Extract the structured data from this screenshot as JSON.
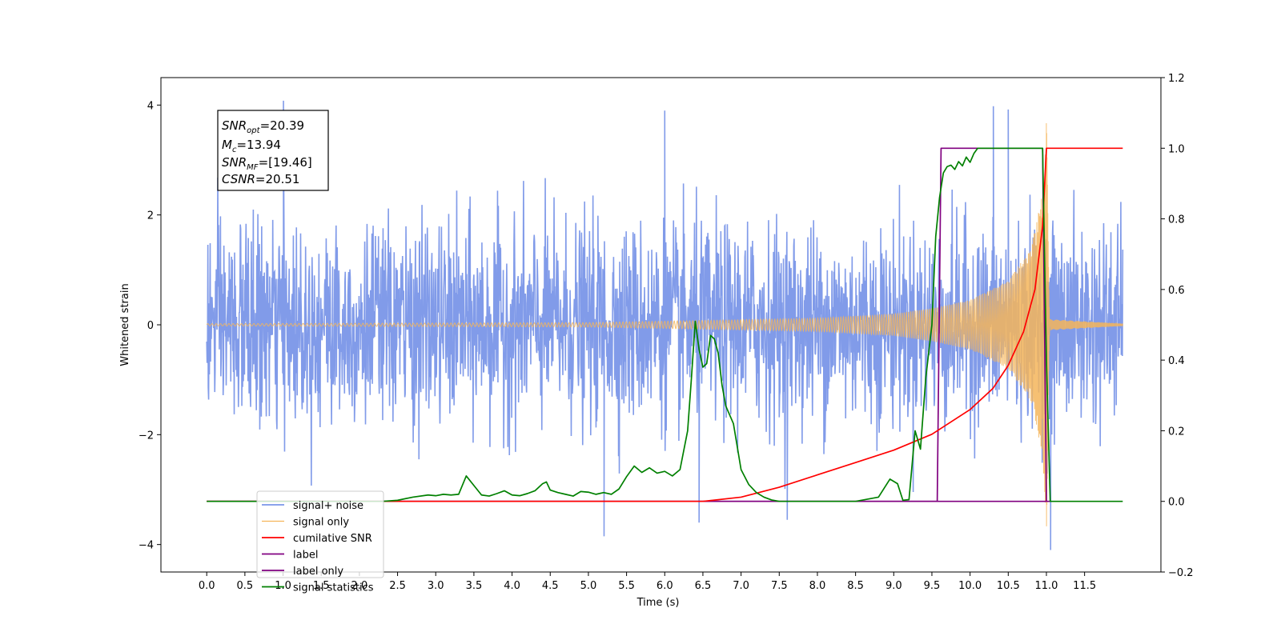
{
  "chart_data": {
    "type": "line",
    "xlabel": "Time (s)",
    "ylabel": "Whitened strain",
    "xlim": [
      -0.6,
      12.5
    ],
    "ylim": [
      -4.5,
      4.5
    ],
    "y2lim": [
      -0.2,
      1.2
    ],
    "xticks": [
      0.0,
      0.5,
      1.0,
      1.5,
      2.0,
      2.5,
      3.0,
      3.5,
      4.0,
      4.5,
      5.0,
      5.5,
      6.0,
      6.5,
      7.0,
      7.5,
      8.0,
      8.5,
      9.0,
      9.5,
      10.0,
      10.5,
      11.0,
      11.5
    ],
    "xtick_labels": [
      "0.0",
      "0.5",
      "1.0",
      "1.5",
      "2.0",
      "2.5",
      "3.0",
      "3.5",
      "4.0",
      "4.5",
      "5.0",
      "5.5",
      "6.0",
      "6.5",
      "7.0",
      "7.5",
      "8.0",
      "8.5",
      "9.0",
      "9.5",
      "10.0",
      "10.5",
      "11.0",
      "11.5"
    ],
    "yticks": [
      -4,
      -2,
      0,
      2,
      4
    ],
    "ytick_labels": [
      "−4",
      "−2",
      "0",
      "2",
      "4"
    ],
    "y2ticks": [
      -0.2,
      0.0,
      0.2,
      0.4,
      0.6,
      0.8,
      1.0,
      1.2
    ],
    "y2tick_labels": [
      "−0.2",
      "0.0",
      "0.2",
      "0.4",
      "0.6",
      "0.8",
      "1.0",
      "1.2"
    ],
    "grid": false,
    "legend_position": "lower-left",
    "annotation": {
      "lines": [
        {
          "main": "SNR",
          "sub": "opt",
          "rest": "=20.39"
        },
        {
          "main": "M",
          "sub": "c",
          "rest": "=13.94"
        },
        {
          "main": "SNR",
          "sub": "MF",
          "rest": "=[19.46]"
        },
        {
          "main": "CSNR",
          "sub": "",
          "rest": "=20.51"
        }
      ]
    },
    "series": [
      {
        "name": "signal+ noise",
        "color": "#7a96e8",
        "axis": "left",
        "kind": "noisy_band",
        "x_range": [
          0.0,
          12.0
        ],
        "envelope_typical": 1.8,
        "envelope_extreme": 4.1,
        "spikes": [
          [
            1.0,
            4.08
          ],
          [
            6.0,
            3.9
          ],
          [
            10.3,
            3.98
          ],
          [
            10.5,
            3.92
          ],
          [
            6.45,
            -3.6
          ],
          [
            11.05,
            -4.1
          ],
          [
            5.2,
            -3.85
          ],
          [
            7.6,
            -3.55
          ]
        ]
      },
      {
        "name": "signal only",
        "color": "#f5b55a",
        "axis": "left",
        "kind": "chirp",
        "x_range": [
          0.0,
          12.0
        ],
        "merger_time": 11.0,
        "amplitude_points": [
          [
            0.0,
            0.02
          ],
          [
            5.0,
            0.04
          ],
          [
            8.0,
            0.12
          ],
          [
            9.0,
            0.2
          ],
          [
            9.5,
            0.3
          ],
          [
            10.0,
            0.45
          ],
          [
            10.5,
            0.8
          ],
          [
            10.8,
            1.4
          ],
          [
            10.95,
            2.4
          ],
          [
            11.0,
            3.8
          ],
          [
            11.05,
            0.1
          ],
          [
            12.0,
            0.02
          ]
        ]
      },
      {
        "name": "cumilative SNR",
        "color": "#ff0000",
        "axis": "right",
        "x": [
          0.0,
          6.5,
          7.0,
          7.5,
          8.0,
          8.5,
          9.0,
          9.5,
          10.0,
          10.3,
          10.5,
          10.7,
          10.85,
          10.95,
          11.0,
          11.05,
          12.0
        ],
        "values": [
          0.0,
          0.0,
          0.012,
          0.04,
          0.075,
          0.11,
          0.145,
          0.19,
          0.26,
          0.32,
          0.385,
          0.48,
          0.6,
          0.78,
          1.0,
          1.0,
          1.0
        ]
      },
      {
        "name": "label",
        "color": "#800080",
        "axis": "right",
        "x": [
          0.0,
          9.57,
          9.62,
          10.95,
          11.0,
          11.05
        ],
        "values": [
          0.0,
          0.0,
          1.0,
          1.0,
          0.0,
          0.0
        ]
      },
      {
        "name": "label only",
        "color": "#800080",
        "axis": "right",
        "x": [
          0.0,
          11.0
        ],
        "values": [
          0.0,
          0.0
        ]
      },
      {
        "name": "signal statistics",
        "color": "#008000",
        "axis": "right",
        "x": [
          0.0,
          2.0,
          2.3,
          2.5,
          2.7,
          2.9,
          3.0,
          3.1,
          3.2,
          3.3,
          3.4,
          3.5,
          3.6,
          3.7,
          3.8,
          3.9,
          4.0,
          4.1,
          4.2,
          4.3,
          4.4,
          4.45,
          4.5,
          4.6,
          4.7,
          4.8,
          4.9,
          5.0,
          5.1,
          5.2,
          5.3,
          5.4,
          5.5,
          5.6,
          5.7,
          5.8,
          5.9,
          6.0,
          6.1,
          6.2,
          6.3,
          6.35,
          6.4,
          6.45,
          6.5,
          6.55,
          6.6,
          6.65,
          6.7,
          6.75,
          6.8,
          6.9,
          7.0,
          7.1,
          7.2,
          7.3,
          7.4,
          7.5,
          7.7,
          8.0,
          8.5,
          8.8,
          8.95,
          9.05,
          9.12,
          9.2,
          9.28,
          9.35,
          9.42,
          9.5,
          9.55,
          9.6,
          9.65,
          9.7,
          9.75,
          9.8,
          9.85,
          9.9,
          9.95,
          10.0,
          10.05,
          10.1,
          10.2,
          10.5,
          10.95,
          11.0,
          11.05,
          11.1,
          12.0
        ],
        "values": [
          0.0,
          0.0,
          0.0,
          0.003,
          0.012,
          0.018,
          0.016,
          0.02,
          0.018,
          0.02,
          0.072,
          0.045,
          0.018,
          0.015,
          0.022,
          0.03,
          0.018,
          0.016,
          0.022,
          0.03,
          0.05,
          0.055,
          0.032,
          0.025,
          0.02,
          0.015,
          0.028,
          0.026,
          0.02,
          0.025,
          0.02,
          0.035,
          0.07,
          0.1,
          0.082,
          0.095,
          0.08,
          0.085,
          0.072,
          0.09,
          0.2,
          0.35,
          0.51,
          0.43,
          0.38,
          0.39,
          0.47,
          0.46,
          0.42,
          0.33,
          0.27,
          0.22,
          0.09,
          0.048,
          0.025,
          0.012,
          0.004,
          0.0,
          0.0,
          0.0,
          0.0,
          0.012,
          0.063,
          0.05,
          0.003,
          0.005,
          0.2,
          0.148,
          0.35,
          0.5,
          0.75,
          0.86,
          0.93,
          0.948,
          0.952,
          0.94,
          0.962,
          0.95,
          0.975,
          0.96,
          0.985,
          1.0,
          1.0,
          1.0,
          1.0,
          0.4,
          0.0,
          0.0,
          0.0
        ]
      }
    ]
  }
}
